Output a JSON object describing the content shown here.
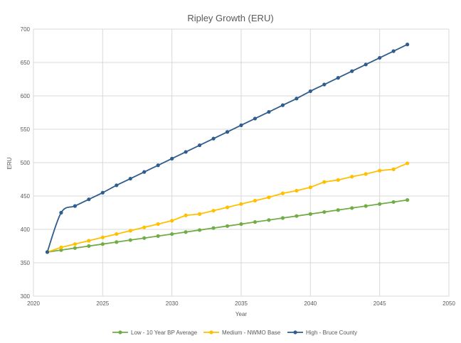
{
  "chart_data": {
    "type": "line",
    "title": "Ripley Growth (ERU)",
    "xlabel": "Year",
    "ylabel": "ERU",
    "xlim": [
      2020,
      2050
    ],
    "ylim": [
      300,
      700
    ],
    "x_ticks": [
      "2020",
      "2025",
      "2030",
      "2035",
      "2040",
      "2045",
      "2050"
    ],
    "y_ticks": [
      "300",
      "350",
      "400",
      "450",
      "500",
      "550",
      "600",
      "650",
      "700"
    ],
    "grid": true,
    "legend_position": "bottom",
    "x": [
      2021,
      2022,
      2023,
      2024,
      2025,
      2026,
      2027,
      2028,
      2029,
      2030,
      2031,
      2032,
      2033,
      2034,
      2035,
      2036,
      2037,
      2038,
      2039,
      2040,
      2041,
      2042,
      2043,
      2044,
      2045,
      2046,
      2047
    ],
    "series": [
      {
        "name": "Low - 10 Year BP Average",
        "color": "#70ad47",
        "values": [
          366,
          369,
          372,
          375,
          378,
          381,
          384,
          387,
          390,
          393,
          396,
          399,
          402,
          405,
          408,
          411,
          414,
          417,
          420,
          423,
          426,
          429,
          432,
          435,
          438,
          441,
          444
        ]
      },
      {
        "name": "Medium - NWMO Base",
        "color": "#ffc000",
        "values": [
          366,
          373,
          378,
          383,
          388,
          393,
          398,
          403,
          408,
          413,
          421,
          423,
          428,
          433,
          438,
          443,
          448,
          454,
          458,
          463,
          471,
          474,
          479,
          483,
          488,
          490,
          499
        ]
      },
      {
        "name": "High - Bruce County",
        "color": "#2e5d8e",
        "values": [
          366,
          425,
          435,
          445,
          455,
          466,
          476,
          486,
          496,
          506,
          516,
          526,
          536,
          546,
          556,
          566,
          576,
          586,
          596,
          607,
          617,
          627,
          637,
          647,
          657,
          667,
          677
        ]
      }
    ]
  }
}
